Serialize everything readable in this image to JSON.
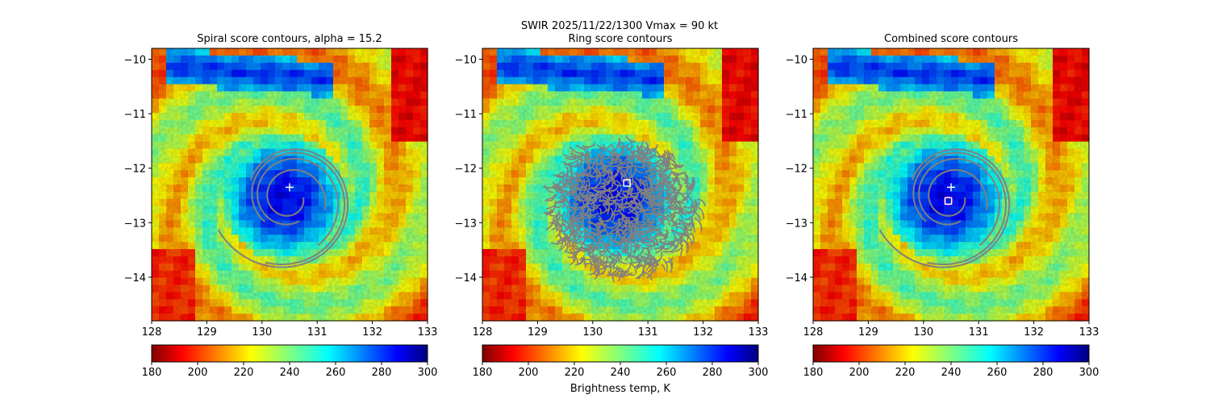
{
  "suptitle": "SWIR  2025/11/22/1300    Vmax = 90 kt",
  "colorbar_label": "Brightness temp, K",
  "chart_data": [
    {
      "type": "heatmap",
      "title": "Spiral score contours, alpha = 15.2",
      "xlim": [
        128,
        133
      ],
      "ylim": [
        -14.8,
        -9.8
      ],
      "xticks": [
        128,
        129,
        130,
        131,
        132,
        133
      ],
      "yticks": [
        -10,
        -11,
        -12,
        -13,
        -14
      ],
      "colorbar": {
        "colormap": "jet",
        "min": 180,
        "max": 300,
        "ticks": [
          180,
          200,
          220,
          240,
          260,
          280,
          300
        ]
      },
      "contour_color": "#808080",
      "contours": "spiral",
      "center_markers": [
        {
          "symbol": "plus",
          "color": "#ffffff",
          "x": 130.5,
          "y": -12.35
        }
      ]
    },
    {
      "type": "heatmap",
      "title": "Ring score contours",
      "xlim": [
        128,
        133
      ],
      "ylim": [
        -14.8,
        -9.8
      ],
      "xticks": [
        128,
        129,
        130,
        131,
        132,
        133
      ],
      "yticks": [
        -10,
        -11,
        -12,
        -13,
        -14
      ],
      "colorbar": {
        "colormap": "jet",
        "min": 180,
        "max": 300,
        "ticks": [
          180,
          200,
          220,
          240,
          260,
          280,
          300
        ]
      },
      "contour_color": "#808080",
      "contours": "ring",
      "center_markers": [
        {
          "symbol": "square",
          "color": "#ffffff",
          "x": 130.62,
          "y": -12.27
        }
      ]
    },
    {
      "type": "heatmap",
      "title": "Combined score contours",
      "xlim": [
        128,
        133
      ],
      "ylim": [
        -14.8,
        -9.8
      ],
      "xticks": [
        128,
        129,
        130,
        131,
        132,
        133
      ],
      "yticks": [
        -10,
        -11,
        -12,
        -13,
        -14
      ],
      "colorbar": {
        "colormap": "jet",
        "min": 180,
        "max": 300,
        "ticks": [
          180,
          200,
          220,
          240,
          260,
          280,
          300
        ]
      },
      "contour_color": "#808080",
      "contours": "spiral",
      "center_markers": [
        {
          "symbol": "plus",
          "color": "#ffffff",
          "x": 130.5,
          "y": -12.35
        },
        {
          "symbol": "circle",
          "color": "#cc00cc",
          "x": 130.45,
          "y": -12.6
        },
        {
          "symbol": "square",
          "color": "#ffffff",
          "x": 130.45,
          "y": -12.6
        }
      ]
    }
  ]
}
